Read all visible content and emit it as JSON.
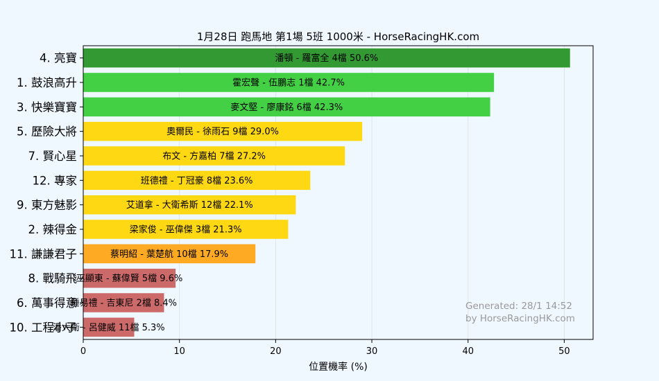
{
  "chart_data": {
    "type": "bar",
    "orientation": "horizontal",
    "title": "1月28日  跑馬地  第1場  5班  1000米 - HorseRacingHK.com",
    "xlabel": "位置機率 (%)",
    "ylabel": "",
    "xlim": [
      0,
      53
    ],
    "xticks": [
      0,
      10,
      20,
      30,
      40,
      50
    ],
    "grid": true,
    "categories": [
      "4. 亮寶",
      "1. 鼓浪高升",
      "3. 快樂寶寶",
      "5. 歷險大將",
      "7. 賢心星",
      "12. 專家",
      "9. 東方魅影",
      "2. 辣得金",
      "11. 謙謙君子",
      "8. 戰騎飛",
      "6. 萬事得意",
      "10. 工程小子"
    ],
    "values": [
      50.6,
      42.7,
      42.3,
      29.0,
      27.2,
      23.6,
      22.1,
      21.3,
      17.9,
      9.6,
      8.4,
      5.3
    ],
    "bar_labels": [
      "潘頓 - 羅富全 4檔  50.6%",
      "霍宏聲 - 伍鵬志 1檔  42.7%",
      "麥文堅 - 廖康銘 6檔  42.3%",
      "奧爾民 - 徐雨石 9檔  29.0%",
      "布文 - 方嘉柏 7檔  27.2%",
      "班德禮 - 丁冠豪 8檔  23.6%",
      "艾道拿 - 大衛希斯 12檔  22.1%",
      "梁家俊 - 巫偉傑 3檔  21.3%",
      "蔡明紹 - 葉楚航 10檔  17.9%",
      "巫顯東 - 蘇偉賢 5檔  9.6%",
      "鍾易禮 - 吉東尼 2檔  8.4%",
      "潘大衛 - 呂健威 11檔  5.3%"
    ],
    "colors": [
      "#339933",
      "#44d044",
      "#44d044",
      "#ffd814",
      "#ffd814",
      "#ffd814",
      "#ffd814",
      "#ffd814",
      "#ffaa22",
      "#cc6a6a",
      "#cc6a6a",
      "#cc6a6a"
    ],
    "annotation": [
      "Generated: 28/1 14:52",
      "by HorseRacingHK.com"
    ]
  }
}
